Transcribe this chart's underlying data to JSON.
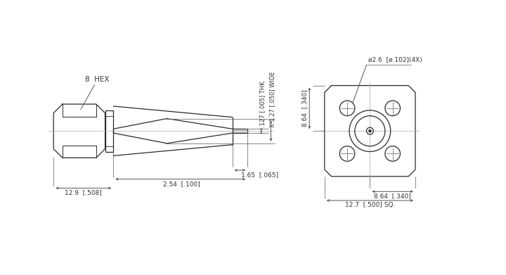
{
  "bg_color": "#ffffff",
  "line_color": "#2a2a2a",
  "dim_color": "#555555",
  "fig_width": 7.2,
  "fig_height": 3.91,
  "dpi": 100,
  "annotations": {
    "hex_label": "8  HEX",
    "dim1": ".127 [.005] THK.",
    "dim2": "X 1.27 [.050] WIDE",
    "dim3": "1.65  [.065]",
    "dim4": "2.54  [.100]",
    "dim5": "12.9  [.508]",
    "dim6": "ø2.6  [ø.102](4X)",
    "dim7": "8.64  [.340]",
    "dim8": "8.64  [.340]",
    "dim9": "12.7  [.500] SQ."
  }
}
